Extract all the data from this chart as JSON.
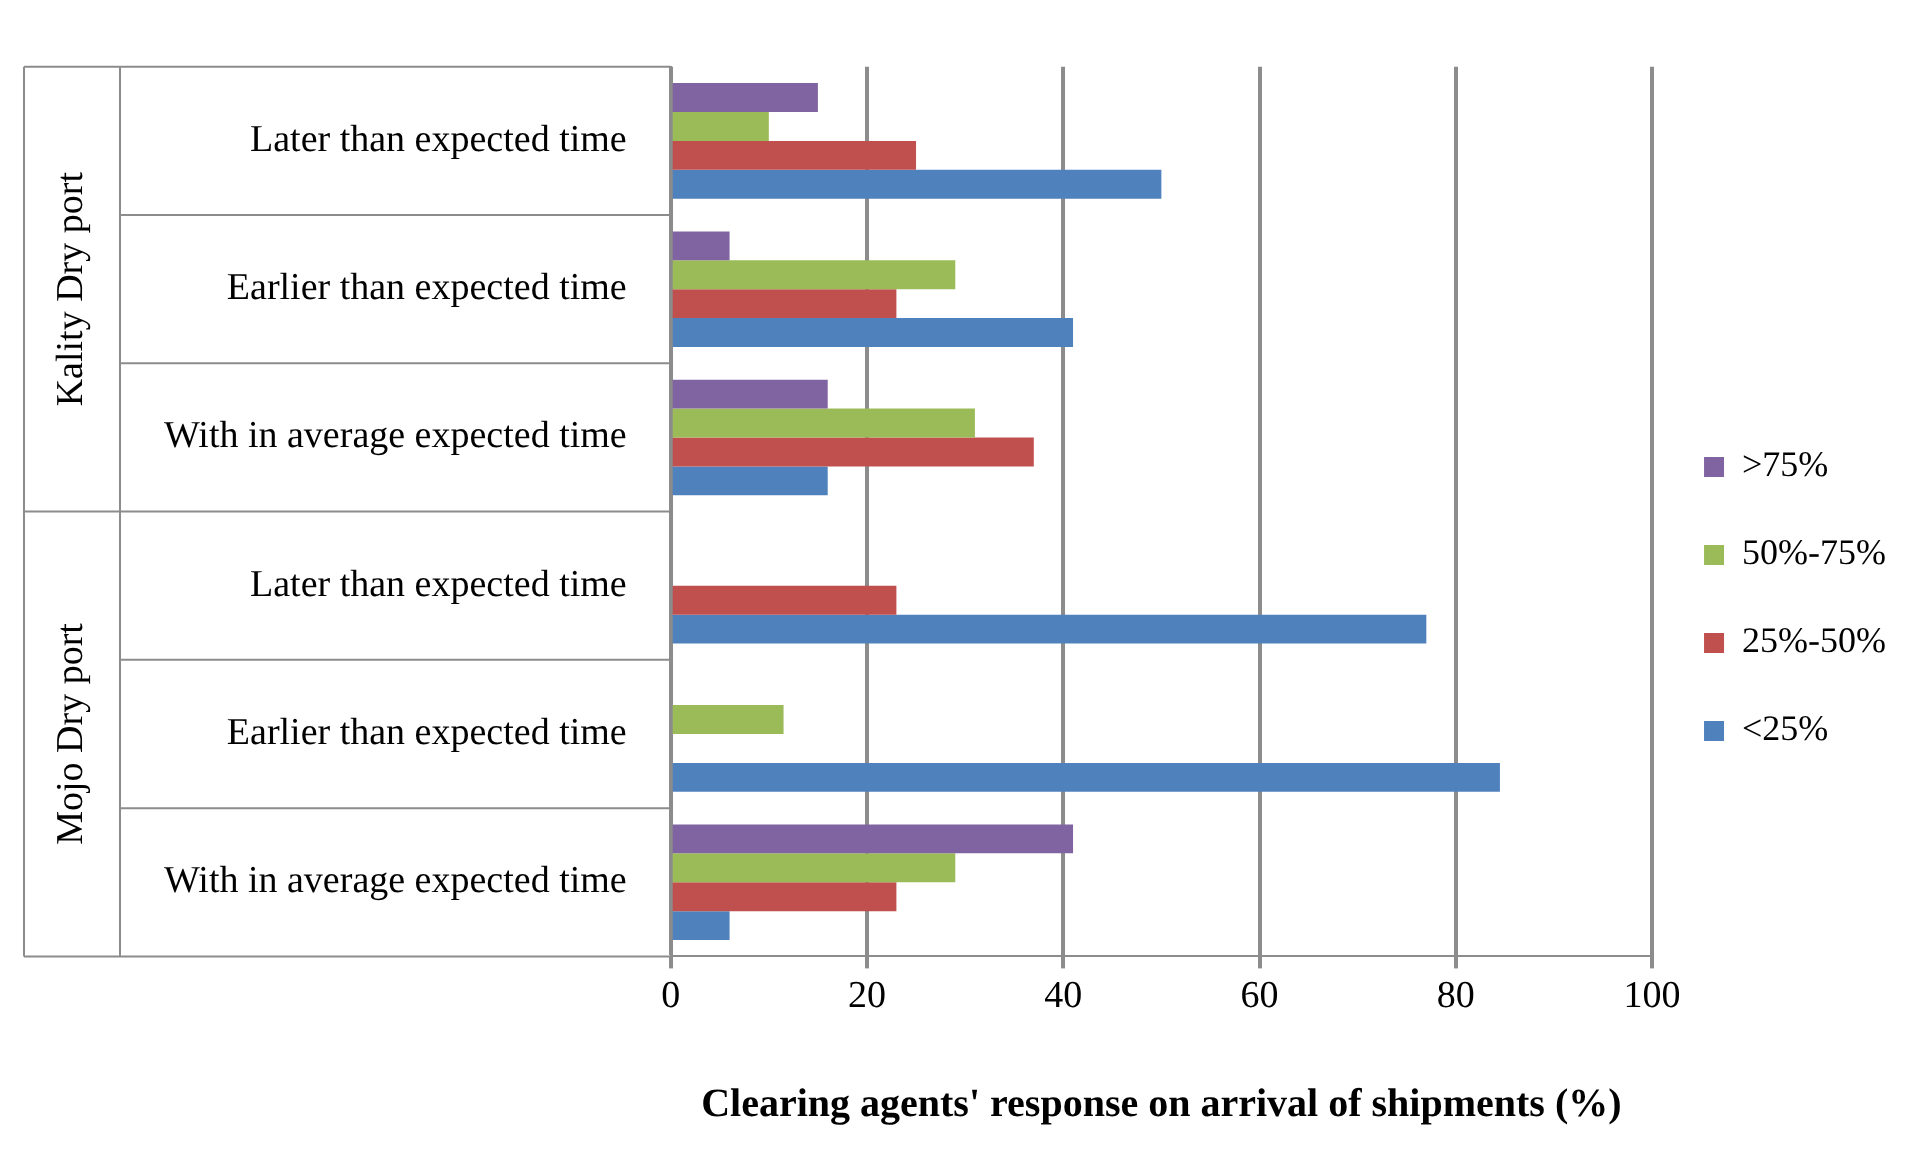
{
  "chart_data": {
    "type": "bar",
    "orientation": "horizontal",
    "xlabel": "Clearing agents' response on arrival of shipments (%)",
    "categories": [
      "Later than expected time",
      "Earlier than expected time",
      "With in average expected time",
      "Later than expected time",
      "Earlier than expected time",
      "With in average expected time"
    ],
    "annotations": [
      "Kality Dry port",
      "Mojo Dry port"
    ],
    "series": [
      {
        "name": ">75%",
        "color": "#8064a2",
        "values": [
          15,
          6,
          16,
          0,
          0,
          41
        ]
      },
      {
        "name": "50%-75%",
        "color": "#9bbb59",
        "values": [
          10,
          29,
          31,
          0,
          11.5,
          29
        ]
      },
      {
        "name": "25%-50%",
        "color": "#c0504d",
        "values": [
          25,
          23,
          37,
          23,
          0,
          23
        ]
      },
      {
        "name": "<25%",
        "color": "#4f81bd",
        "values": [
          50,
          41,
          16,
          77,
          84.5,
          6
        ]
      }
    ],
    "xlim": [
      0,
      100
    ],
    "xticks": [
      0,
      20,
      40,
      60,
      80,
      100
    ],
    "grid": "x",
    "legend": "right"
  }
}
